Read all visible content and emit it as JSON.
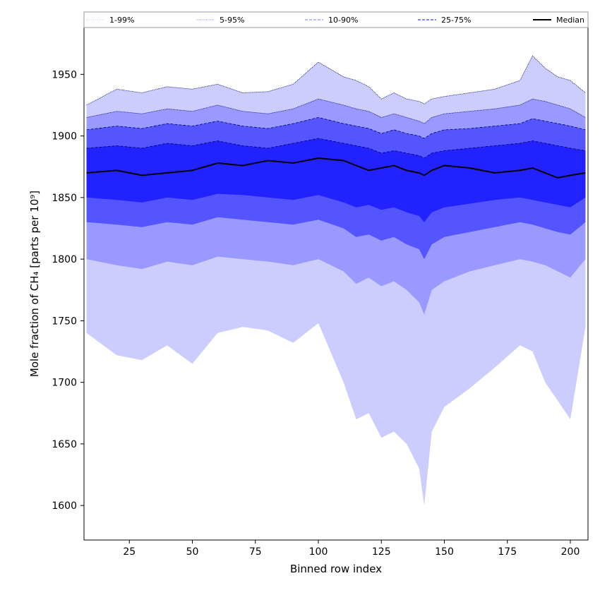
{
  "chart_data": {
    "type": "area",
    "xlabel": "Binned row index",
    "ylabel": "Mole fraction of CH₄ [parts per 10⁹]",
    "xlim": [
      7,
      207
    ],
    "ylim": [
      1572,
      1988
    ],
    "xticks": [
      25,
      50,
      75,
      100,
      125,
      150,
      175,
      200
    ],
    "yticks": [
      1600,
      1650,
      1700,
      1750,
      1800,
      1850,
      1900,
      1950
    ],
    "grid": false,
    "legend_position": "top",
    "legend": [
      "1-99%",
      "5-95%",
      "10-90%",
      "25-75%",
      "Median"
    ],
    "x": [
      8,
      20,
      30,
      40,
      50,
      60,
      70,
      80,
      90,
      100,
      110,
      115,
      120,
      125,
      130,
      135,
      140,
      142,
      145,
      150,
      160,
      170,
      180,
      185,
      190,
      195,
      200,
      206
    ],
    "bands": [
      {
        "name": "1-99%",
        "color": "#ccccff",
        "line_style": "dotted",
        "lower": [
          1740,
          1722,
          1718,
          1730,
          1715,
          1740,
          1745,
          1742,
          1732,
          1748,
          1700,
          1670,
          1675,
          1655,
          1660,
          1650,
          1630,
          1600,
          1660,
          1680,
          1695,
          1712,
          1730,
          1725,
          1700,
          1685,
          1670,
          1745
        ],
        "upper": [
          1925,
          1938,
          1935,
          1940,
          1938,
          1942,
          1935,
          1936,
          1942,
          1960,
          1948,
          1945,
          1940,
          1930,
          1935,
          1930,
          1928,
          1926,
          1930,
          1932,
          1935,
          1938,
          1945,
          1965,
          1955,
          1948,
          1945,
          1935
        ]
      },
      {
        "name": "5-95%",
        "color": "#9999ff",
        "line_style": "dotted",
        "lower": [
          1800,
          1795,
          1792,
          1798,
          1795,
          1802,
          1800,
          1798,
          1795,
          1800,
          1790,
          1780,
          1785,
          1778,
          1782,
          1775,
          1765,
          1755,
          1775,
          1782,
          1790,
          1795,
          1800,
          1798,
          1795,
          1790,
          1785,
          1800
        ]
      },
      {
        "name": "10-90%",
        "color": "#5555ff",
        "line_style": "dashed",
        "lower": [
          1830,
          1828,
          1826,
          1830,
          1828,
          1834,
          1832,
          1830,
          1828,
          1832,
          1825,
          1818,
          1820,
          1815,
          1818,
          1812,
          1808,
          1800,
          1812,
          1818,
          1822,
          1826,
          1830,
          1828,
          1825,
          1822,
          1820,
          1830
        ]
      },
      {
        "name": "25-75%",
        "color": "#2222ff",
        "line_style": "dashed",
        "lower": [
          1850,
          1848,
          1846,
          1850,
          1848,
          1853,
          1852,
          1850,
          1848,
          1852,
          1846,
          1842,
          1844,
          1840,
          1842,
          1838,
          1835,
          1830,
          1838,
          1842,
          1845,
          1848,
          1850,
          1848,
          1846,
          1844,
          1842,
          1850
        ]
      }
    ],
    "inner_upper_bounds": {
      "5-95%": [
        1915,
        1920,
        1918,
        1922,
        1920,
        1925,
        1920,
        1918,
        1922,
        1930,
        1925,
        1922,
        1920,
        1915,
        1918,
        1915,
        1912,
        1910,
        1915,
        1918,
        1920,
        1922,
        1925,
        1930,
        1928,
        1925,
        1922,
        1915
      ],
      "10-90%": [
        1905,
        1908,
        1906,
        1910,
        1908,
        1912,
        1908,
        1906,
        1910,
        1915,
        1910,
        1908,
        1906,
        1902,
        1905,
        1902,
        1900,
        1898,
        1902,
        1905,
        1906,
        1908,
        1910,
        1914,
        1912,
        1910,
        1908,
        1905
      ],
      "25-75%": [
        1890,
        1892,
        1890,
        1894,
        1892,
        1896,
        1892,
        1890,
        1894,
        1898,
        1894,
        1892,
        1890,
        1886,
        1888,
        1886,
        1884,
        1882,
        1886,
        1888,
        1890,
        1892,
        1894,
        1896,
        1894,
        1892,
        1890,
        1888
      ]
    },
    "median": {
      "name": "Median",
      "color": "#000000",
      "values": [
        1870,
        1872,
        1868,
        1870,
        1872,
        1878,
        1876,
        1880,
        1878,
        1882,
        1880,
        1876,
        1872,
        1874,
        1876,
        1872,
        1870,
        1868,
        1872,
        1876,
        1874,
        1870,
        1872,
        1874,
        1870,
        1866,
        1868,
        1870
      ]
    }
  }
}
